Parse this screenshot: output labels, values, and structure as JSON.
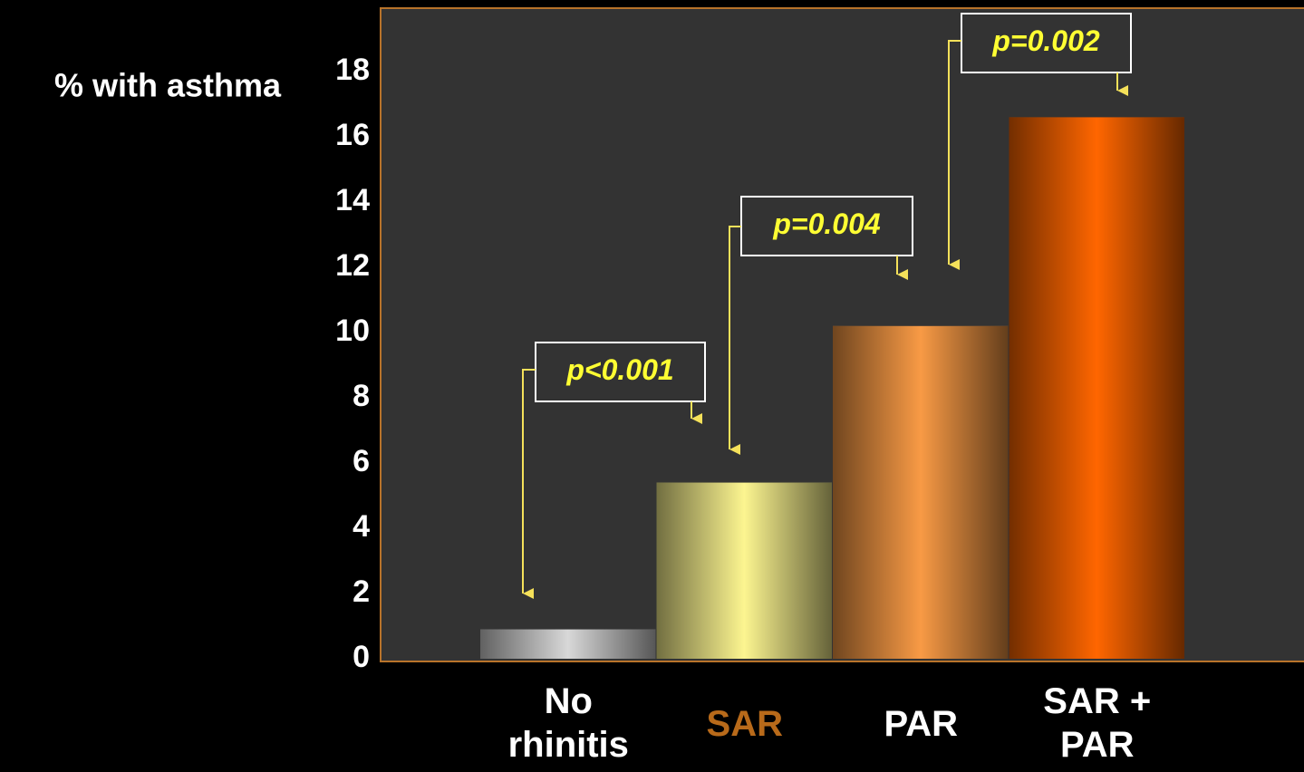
{
  "chart_data": {
    "type": "bar",
    "y_label": "% with asthma",
    "categories": [
      "No rhinitis",
      "SAR",
      "PAR",
      "SAR + PAR"
    ],
    "values": [
      0.9,
      5.4,
      10.2,
      16.6
    ],
    "colors": [
      "#d8d8d8",
      "#fcf590",
      "#f89a45",
      "#ff6600"
    ],
    "label_colors": [
      "#ffffff",
      "#b86a1a",
      "#ffffff",
      "#ffffff"
    ],
    "ylim": [
      0,
      20
    ],
    "yticks": [
      0,
      2,
      4,
      6,
      8,
      10,
      12,
      14,
      16,
      18
    ],
    "annotations": [
      "p<0.001",
      "p=0.004",
      "p=0.002"
    ]
  }
}
